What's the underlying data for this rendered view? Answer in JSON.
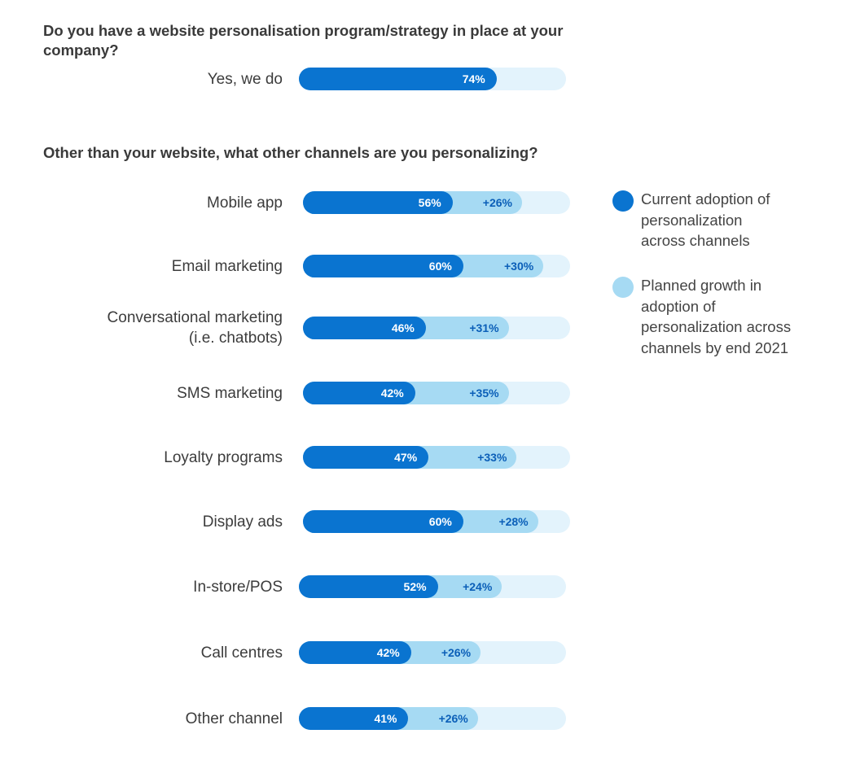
{
  "chart_data": [
    {
      "type": "bar",
      "orientation": "horizontal",
      "title": "Do you have a website personalisation program/strategy in place at your company?",
      "categories": [
        "Yes, we do"
      ],
      "values": [
        74
      ],
      "value_labels": [
        "74%"
      ],
      "xlim": [
        0,
        100
      ]
    },
    {
      "type": "bar",
      "orientation": "horizontal",
      "stacked": true,
      "title": "Other than your website, what other channels are you personalizing?",
      "categories": [
        "Mobile app",
        "Email marketing",
        "Conversational marketing (i.e. chatbots)",
        "SMS marketing",
        "Loyalty programs",
        "Display ads",
        "In-store/POS",
        "Call centres",
        "Other channel"
      ],
      "category_lines": [
        [
          "Mobile app"
        ],
        [
          "Email marketing"
        ],
        [
          "Conversational marketing",
          "(i.e. chatbots)"
        ],
        [
          "SMS marketing"
        ],
        [
          "Loyalty programs"
        ],
        [
          "Display ads"
        ],
        [
          "In-store/POS"
        ],
        [
          "Call centres"
        ],
        [
          "Other channel"
        ]
      ],
      "series": [
        {
          "name": "Current adoption of personalization across channels",
          "values": [
            56,
            60,
            46,
            42,
            47,
            60,
            52,
            42,
            41
          ],
          "labels": [
            "56%",
            "60%",
            "46%",
            "42%",
            "47%",
            "60%",
            "52%",
            "42%",
            "41%"
          ],
          "color": "#0a74d0"
        },
        {
          "name": "Planned growth in adoption of personalization across channels by end 2021",
          "values": [
            26,
            30,
            31,
            35,
            33,
            28,
            24,
            26,
            26
          ],
          "labels": [
            "+26%",
            "+30%",
            "+31%",
            "+35%",
            "+33%",
            "+28%",
            "+24%",
            "+26%",
            "+26%"
          ],
          "color": "#a6daf3"
        }
      ],
      "xlim": [
        0,
        100
      ],
      "legend_placement": "right",
      "track_color": "#e3f3fc"
    }
  ],
  "legend": {
    "items": [
      {
        "lines": [
          "Current adoption of",
          "personalization",
          "across channels"
        ]
      },
      {
        "lines": [
          "Planned growth in",
          "adoption of",
          "personalization across",
          "channels by end 2021"
        ]
      }
    ]
  }
}
